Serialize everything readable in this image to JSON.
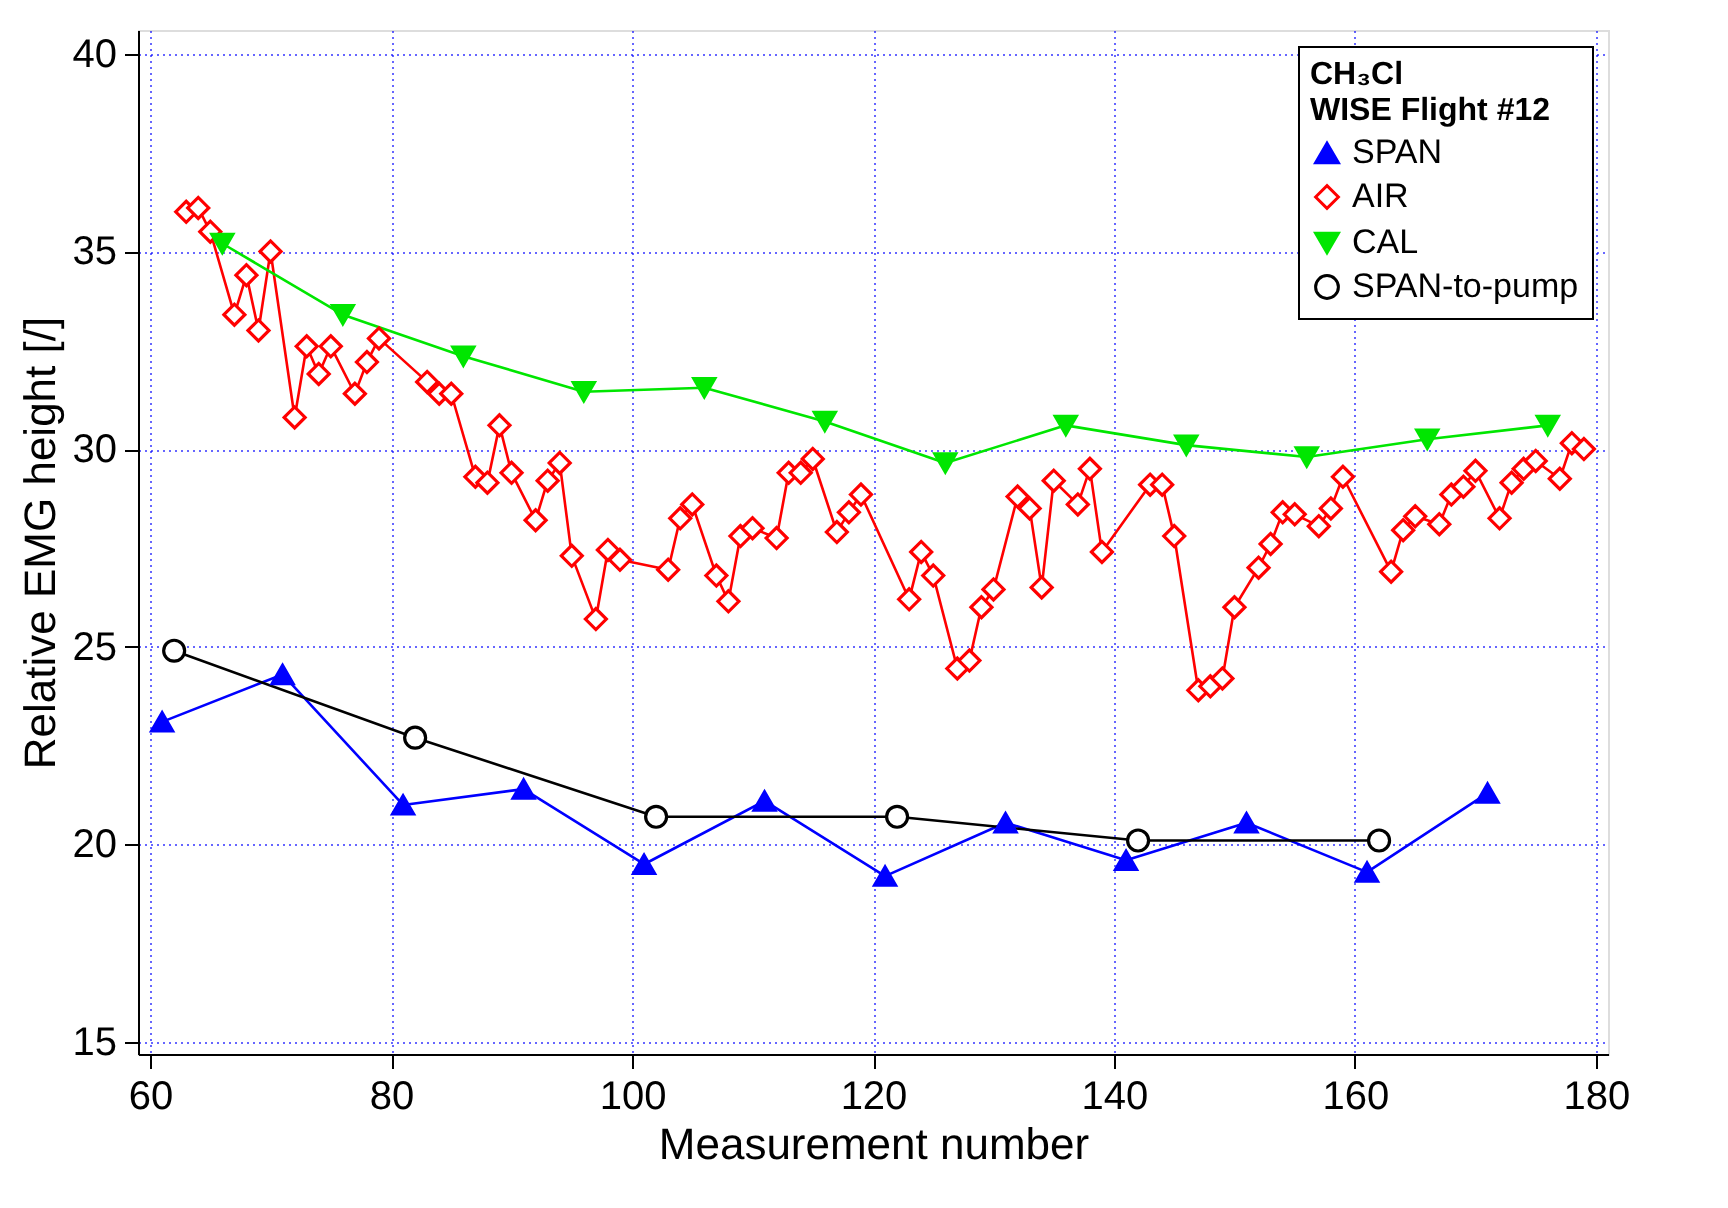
{
  "chart_data": {
    "type": "line",
    "xlabel": "Measurement number",
    "ylabel": "Relative EMG height [/]",
    "legend_title": "CH₃Cl\nWISE Flight #12",
    "legend": "top right",
    "grid": true,
    "line_style": "solid",
    "xlim": [
      59,
      181
    ],
    "xticks": [
      60,
      80,
      100,
      120,
      140,
      160,
      180
    ],
    "ylim": [
      14.7,
      40.6
    ],
    "yticks": [
      15,
      20,
      25,
      30,
      35,
      40
    ],
    "series": [
      {
        "name": "SPAN",
        "color": "#0000ff",
        "marker": "triangle",
        "x": [
          61,
          71,
          81,
          91,
          101,
          111,
          121,
          131,
          141,
          151,
          161,
          171
        ],
        "values": [
          23.1,
          24.3,
          21.0,
          21.4,
          19.5,
          21.1,
          19.2,
          20.55,
          19.6,
          20.55,
          19.3,
          21.3
        ]
      },
      {
        "name": "AIR",
        "color": "#ff0000",
        "marker": "diamond",
        "x": [
          63,
          64,
          65,
          67,
          68,
          69,
          70,
          72,
          73,
          74,
          75,
          77,
          78,
          79,
          83,
          84,
          85,
          87,
          88,
          89,
          90,
          92,
          93,
          94,
          95,
          97,
          98,
          99,
          103,
          104,
          105,
          107,
          108,
          109,
          110,
          112,
          113,
          114,
          115,
          117,
          118,
          119,
          123,
          124,
          125,
          127,
          128,
          129,
          130,
          132,
          133,
          134,
          135,
          137,
          138,
          139,
          143,
          144,
          145,
          147,
          148,
          149,
          150,
          152,
          153,
          154,
          155,
          157,
          158,
          159,
          163,
          164,
          165,
          167,
          168,
          169,
          170,
          172,
          173,
          174,
          175,
          177,
          178,
          179
        ],
        "values": [
          36.0,
          36.1,
          35.5,
          33.4,
          34.4,
          33.0,
          35.0,
          30.8,
          32.6,
          31.9,
          32.6,
          31.4,
          32.2,
          32.8,
          31.7,
          31.4,
          31.4,
          29.3,
          29.15,
          30.6,
          29.4,
          28.2,
          29.2,
          29.65,
          27.3,
          25.7,
          27.45,
          27.2,
          26.95,
          28.25,
          28.6,
          26.8,
          26.15,
          27.8,
          28.0,
          27.75,
          29.4,
          29.4,
          29.75,
          27.9,
          28.4,
          28.85,
          26.2,
          27.4,
          26.8,
          24.45,
          24.65,
          26.0,
          26.45,
          28.8,
          28.5,
          26.5,
          29.2,
          28.6,
          29.5,
          27.4,
          29.1,
          29.1,
          27.8,
          23.9,
          24.0,
          24.2,
          26.0,
          27.0,
          27.6,
          28.4,
          28.35,
          28.05,
          28.5,
          29.3,
          26.9,
          27.95,
          28.3,
          28.1,
          28.85,
          29.05,
          29.45,
          28.25,
          29.15,
          29.5,
          29.7,
          29.25,
          30.15,
          30.0
        ]
      },
      {
        "name": "CAL",
        "color": "#00e600",
        "marker": "triangle-down",
        "x": [
          66,
          76,
          86,
          96,
          106,
          116,
          126,
          136,
          146,
          156,
          166,
          176
        ],
        "values": [
          35.2,
          33.4,
          32.35,
          31.45,
          31.55,
          30.7,
          29.65,
          30.6,
          30.1,
          29.8,
          30.25,
          30.6
        ]
      },
      {
        "name": "SPAN-to-pump",
        "color": "#000000",
        "marker": "circle",
        "x": [
          62,
          82,
          102,
          122,
          142,
          162
        ],
        "values": [
          24.9,
          22.7,
          20.7,
          20.7,
          20.1,
          20.1
        ]
      }
    ]
  }
}
